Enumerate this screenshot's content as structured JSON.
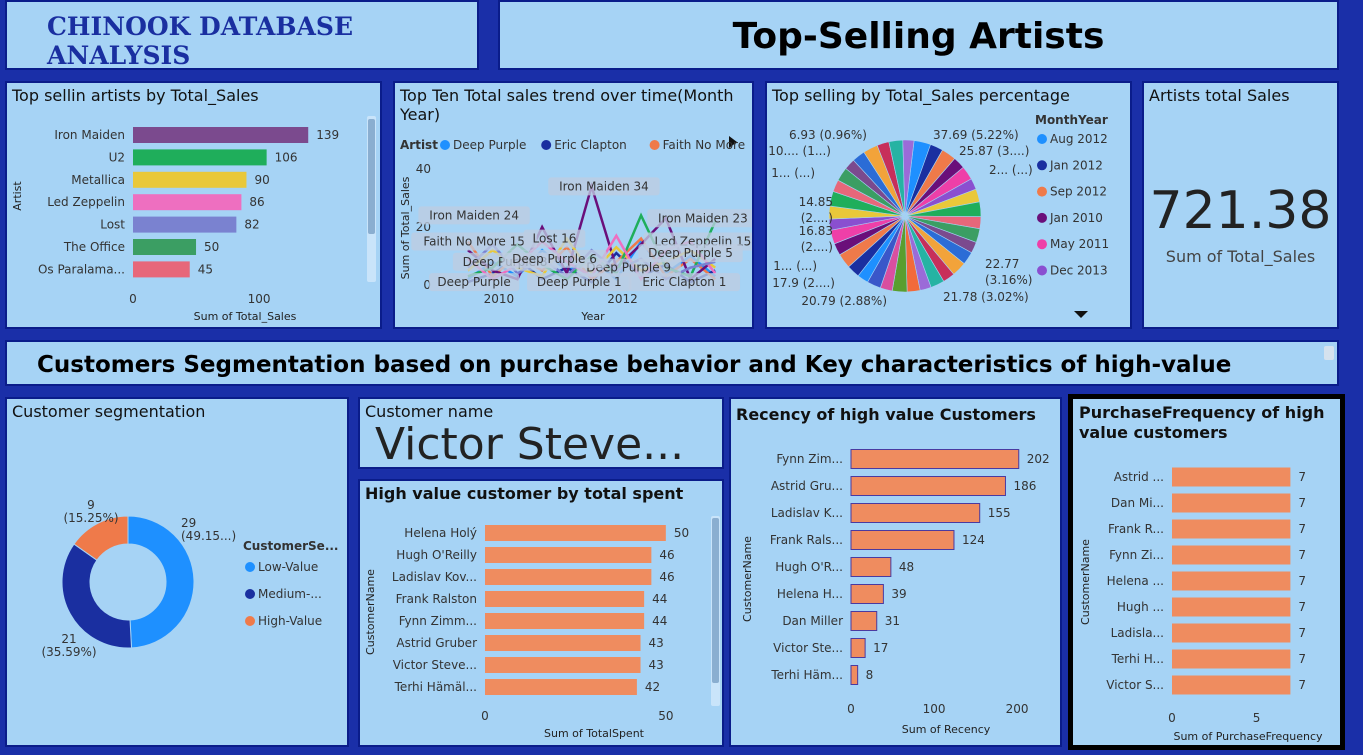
{
  "header": {
    "main_title": "CHINOOK DATABASE ANALYSIS",
    "section_title": "Top-Selling Artists",
    "segment_banner": "Customers Segmentation based on purchase behavior and Key characteristics of high-value"
  },
  "colors": {
    "background": "#1a2fa8",
    "panel": "#a6d3f5",
    "bar_orange": "#ef8c5f"
  },
  "card": {
    "title": "Artists total Sales",
    "value": "721.38",
    "label": "Sum of Total_Sales"
  },
  "customer_card": {
    "title": "Customer name",
    "value": "Victor Steve..."
  },
  "chart_data": [
    {
      "id": "artists_bar",
      "type": "bar",
      "title": "Top sellin artists by Total_Sales",
      "xlabel": "Sum of Total_Sales",
      "ylabel": "Artist",
      "categories": [
        "Iron Maiden",
        "U2",
        "Metallica",
        "Led Zeppelin",
        "Lost",
        "The Office",
        "Os Paralama..."
      ],
      "values": [
        139,
        106,
        90,
        86,
        82,
        50,
        45
      ],
      "value_labels": [
        "139",
        "106",
        "90",
        "86",
        "82",
        "50",
        "45"
      ],
      "colors": [
        "#7b4a8e",
        "#1fae5b",
        "#e9c83a",
        "#ee6fc0",
        "#7a82d0",
        "#3b9e63",
        "#e7677a"
      ],
      "xticks": [
        0,
        100
      ],
      "xlim": [
        0,
        165
      ]
    },
    {
      "id": "trend_line",
      "type": "line",
      "title": "Top Ten Total sales trend over time(Month Year)",
      "xlabel": "Year",
      "ylabel": "Sum of Total_Sales",
      "legend_title": "Artist",
      "legend": [
        "Deep Purple",
        "Eric Clapton",
        "Faith No More"
      ],
      "legend_colors": [
        "#1e90ff",
        "#1a2fa0",
        "#ef7a4a"
      ],
      "yticks": [
        0,
        20,
        40
      ],
      "xticks": [
        2010,
        2012
      ],
      "ylim": [
        0,
        40
      ],
      "xlim": [
        2009,
        2013.9
      ],
      "tooltip_labels": [
        {
          "text": "Iron Maiden 34",
          "x": 2011.7,
          "y": 34
        },
        {
          "text": "Iron Maiden 24",
          "x": 2009.6,
          "y": 24
        },
        {
          "text": "Iron Maiden 23",
          "x": 2013.3,
          "y": 23
        },
        {
          "text": "Faith No More 15",
          "x": 2009.6,
          "y": 15
        },
        {
          "text": "Lost 16",
          "x": 2010.9,
          "y": 16
        },
        {
          "text": "Led Zeppelin 15",
          "x": 2013.3,
          "y": 15
        },
        {
          "text": "Deep Purple 5",
          "x": 2013.1,
          "y": 11
        },
        {
          "text": "Deep Purple 9",
          "x": 2012.1,
          "y": 6
        },
        {
          "text": "Deep Purple 8",
          "x": 2010.1,
          "y": 8
        },
        {
          "text": "Deep Purple 6",
          "x": 2010.9,
          "y": 9
        },
        {
          "text": "Deep Purple",
          "x": 2009.6,
          "y": 1
        },
        {
          "text": "Deep Purple 1",
          "x": 2011.3,
          "y": 1
        },
        {
          "text": "Eric Clapton 1",
          "x": 2013.0,
          "y": 1
        }
      ],
      "series": [
        {
          "color": "#1e90ff",
          "x": [
            2009.5,
            2009.9,
            2010.3,
            2010.7,
            2011.1,
            2011.5,
            2011.9,
            2012.3,
            2012.7,
            2013.1,
            2013.5
          ],
          "y": [
            2,
            8,
            3,
            12,
            5,
            9,
            2,
            15,
            4,
            10,
            3
          ]
        },
        {
          "color": "#1a2fa0",
          "x": [
            2009.5,
            2009.9,
            2010.3,
            2010.7,
            2011.1,
            2011.5,
            2011.9,
            2012.3,
            2012.7,
            2013.1,
            2013.5
          ],
          "y": [
            1,
            4,
            9,
            2,
            6,
            1,
            11,
            3,
            7,
            1,
            5
          ]
        },
        {
          "color": "#ef7a4a",
          "x": [
            2009.5,
            2009.9,
            2010.3,
            2010.7,
            2011.1,
            2011.5,
            2011.9,
            2012.3,
            2012.7,
            2013.1,
            2013.5
          ],
          "y": [
            15,
            3,
            10,
            5,
            13,
            2,
            8,
            16,
            3,
            9,
            2
          ]
        },
        {
          "color": "#6a0f7a",
          "x": [
            2009.5,
            2009.9,
            2010.3,
            2010.7,
            2011.1,
            2011.5,
            2011.9,
            2012.3,
            2012.7,
            2013.1,
            2013.5
          ],
          "y": [
            12,
            5,
            2,
            20,
            4,
            34,
            6,
            14,
            23,
            2,
            9
          ]
        },
        {
          "color": "#e9c83a",
          "x": [
            2009.5,
            2009.9,
            2010.3,
            2010.7,
            2011.1,
            2011.5,
            2011.9,
            2012.3,
            2012.7,
            2013.1,
            2013.5
          ],
          "y": [
            5,
            12,
            6,
            3,
            16,
            4,
            13,
            5,
            8,
            12,
            6
          ]
        },
        {
          "color": "#1fae5b",
          "x": [
            2009.5,
            2009.9,
            2010.3,
            2010.7,
            2011.1,
            2011.5,
            2011.9,
            2012.3,
            2012.7,
            2013.1,
            2013.5
          ],
          "y": [
            3,
            6,
            14,
            7,
            2,
            10,
            4,
            24,
            6,
            3,
            22
          ]
        },
        {
          "color": "#ee6fc0",
          "x": [
            2009.5,
            2009.9,
            2010.3,
            2010.7,
            2011.1,
            2011.5,
            2011.9,
            2012.3,
            2012.7,
            2013.1,
            2013.5
          ],
          "y": [
            9,
            2,
            7,
            15,
            8,
            3,
            17,
            2,
            12,
            15,
            4
          ]
        },
        {
          "color": "#7a82d0",
          "x": [
            2009.5,
            2009.9,
            2010.3,
            2010.7,
            2011.1,
            2011.5,
            2011.9,
            2012.3,
            2012.7,
            2013.1,
            2013.5
          ],
          "y": [
            6,
            14,
            4,
            9,
            3,
            12,
            5,
            9,
            2,
            6,
            8
          ]
        }
      ]
    },
    {
      "id": "sales_pie",
      "type": "pie",
      "title": "Top selling by Total_Sales percentage",
      "legend_title": "MonthYear",
      "legend": [
        "Aug 2012",
        "Jan 2012",
        "Sep 2012",
        "Jan 2010",
        "May 2011",
        "Dec 2013"
      ],
      "legend_colors": [
        "#1e90ff",
        "#1a2fa0",
        "#ef7a4a",
        "#6a0f7a",
        "#ee3fa8",
        "#8a4fd0"
      ],
      "slice_count": 36,
      "slice_colors": [
        "#1e90ff",
        "#1a2fa0",
        "#ef7a4a",
        "#6a0f7a",
        "#ee3fa8",
        "#8a4fd0",
        "#e9c83a",
        "#1fae5b",
        "#e7677a",
        "#3b9e63",
        "#7b4a8e",
        "#2b6cd6",
        "#f2a33a",
        "#c72f5a",
        "#26b3a3",
        "#9b6bd8",
        "#f26a3a",
        "#5a9e2f",
        "#d94fa0",
        "#3a57c9"
      ],
      "labels": [
        "37.69 (5.22%)",
        "25.87 (3....)",
        "2... (...)",
        "22.77 (3.16%)",
        "21.78 (3.02%)",
        "20.79 (2.88%)",
        "17.9 (2....)",
        "1... (...)",
        "16.83 (2....)",
        "14.85 (2....)",
        "1... (...)",
        "10.... (1...)",
        "6.93 (0.96%)"
      ]
    },
    {
      "id": "segment_donut",
      "type": "pie",
      "title": "Customer segmentation",
      "legend_title": "CustomerSe...",
      "legend": [
        "Low-Value",
        "Medium-...",
        "High-Value"
      ],
      "legend_colors": [
        "#1e90ff",
        "#1a2fa0",
        "#ef7a4a"
      ],
      "values": [
        29,
        21,
        9
      ],
      "labels": [
        "29",
        "21",
        "9"
      ],
      "percent_labels": [
        "(49.15...)",
        "(35.59%)",
        "(15.25%)"
      ]
    },
    {
      "id": "spent_bar",
      "type": "bar",
      "title": "High value customer by total spent",
      "xlabel": "Sum of TotalSpent",
      "ylabel": "CustomerName",
      "categories": [
        "Helena Holý",
        "Hugh O'Reilly",
        "Ladislav Kov...",
        "Frank Ralston",
        "Fynn Zimm...",
        "Astrid Gruber",
        "Victor Steve...",
        "Terhi Hämäl..."
      ],
      "values": [
        50,
        46,
        46,
        44,
        44,
        43,
        43,
        42
      ],
      "value_labels": [
        "50",
        "46",
        "46",
        "44",
        "44",
        "43",
        "43",
        "42"
      ],
      "xticks": [
        0,
        50
      ],
      "xlim": [
        0,
        60
      ]
    },
    {
      "id": "recency_bar",
      "type": "bar",
      "title": "Recency of high value Customers",
      "xlabel": "Sum of Recency",
      "ylabel": "CustomerName",
      "categories": [
        "Fynn Zim...",
        "Astrid Gru...",
        "Ladislav K...",
        "Frank Rals...",
        "Hugh O'R...",
        "Helena H...",
        "Dan Miller",
        "Victor Ste...",
        "Terhi Häm..."
      ],
      "values": [
        202,
        186,
        155,
        124,
        48,
        39,
        31,
        17,
        8
      ],
      "value_labels": [
        "202",
        "186",
        "155",
        "124",
        "48",
        "39",
        "31",
        "17",
        "8"
      ],
      "xticks": [
        0,
        100,
        200
      ],
      "xlim": [
        0,
        230
      ]
    },
    {
      "id": "frequency_bar",
      "type": "bar",
      "title": "PurchaseFrequency of high value customers",
      "xlabel": "Sum of PurchaseFrequency",
      "ylabel": "CustomerName",
      "categories": [
        "Astrid ...",
        "Dan Mi...",
        "Frank R...",
        "Fynn Zi...",
        "Helena ...",
        "Hugh ...",
        "Ladisla...",
        "Terhi H...",
        "Victor S..."
      ],
      "values": [
        7,
        7,
        7,
        7,
        7,
        7,
        7,
        7,
        7
      ],
      "value_labels": [
        "7",
        "7",
        "7",
        "7",
        "7",
        "7",
        "7",
        "7",
        "7"
      ],
      "xticks": [
        0,
        5
      ],
      "xlim": [
        0,
        8.1
      ]
    }
  ]
}
